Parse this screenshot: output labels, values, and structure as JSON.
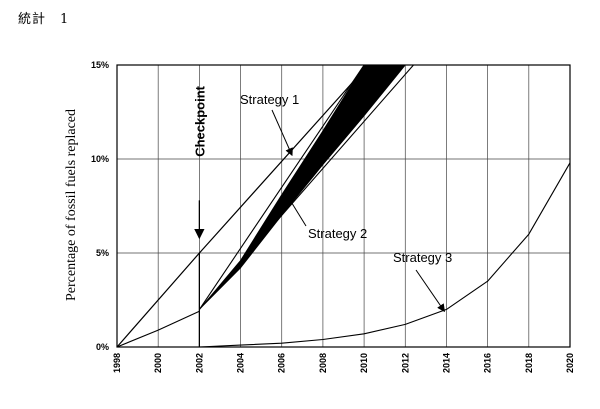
{
  "header": {
    "title": "統計",
    "number": "1"
  },
  "chart_data": {
    "type": "line",
    "title": "",
    "xlabel": "",
    "ylabel": "Percentage of fossil fuels replaced",
    "xlim": [
      1998,
      2020
    ],
    "ylim": [
      0,
      15
    ],
    "x_ticks": [
      "1998",
      "2000",
      "2002",
      "2004",
      "2006",
      "2008",
      "2010",
      "2012",
      "2014",
      "2016",
      "2018",
      "2020"
    ],
    "y_ticks": [
      "0%",
      "5%",
      "10%",
      "15%"
    ],
    "grid": true,
    "series": [
      {
        "name": "Strategy 1",
        "style": "line",
        "x": [
          1998,
          2002,
          2010.2
        ],
        "y": [
          0,
          5,
          15
        ]
      },
      {
        "name": "Strategy 2",
        "style": "band",
        "x": [
          2002,
          2004,
          2006,
          2008,
          2010,
          2012
        ],
        "y_upper": [
          2.0,
          4.6,
          8.1,
          11.5,
          15.0,
          15.0
        ],
        "y_lower": [
          2.0,
          4.2,
          7.0,
          9.7,
          12.3,
          15.0
        ],
        "outer_upper": {
          "x": [
            2002,
            2010
          ],
          "y": [
            2.0,
            15.0
          ]
        },
        "outer_lower": {
          "x": [
            2002,
            2012.4
          ],
          "y": [
            2.0,
            15.0
          ]
        }
      },
      {
        "name": "Strategy 3",
        "style": "line",
        "x": [
          1998,
          2000,
          2002,
          2002,
          2004,
          2006,
          2008,
          2010,
          2012,
          2014,
          2016,
          2018,
          2020
        ],
        "y": [
          0,
          0.9,
          1.9,
          0,
          0.1,
          0.2,
          0.4,
          0.7,
          1.2,
          2.0,
          3.5,
          6.0,
          9.8
        ]
      }
    ],
    "annotations": [
      {
        "text": "Strategy 1",
        "arrow_to": [
          2006.5,
          10.2
        ]
      },
      {
        "text": "Strategy 2",
        "arrow_to": [
          2006.3,
          8.0
        ]
      },
      {
        "text": "Strategy 3",
        "arrow_to": [
          2013.9,
          1.9
        ]
      }
    ],
    "checkpoint": {
      "label": "Checkpoint",
      "x": 2002
    }
  }
}
